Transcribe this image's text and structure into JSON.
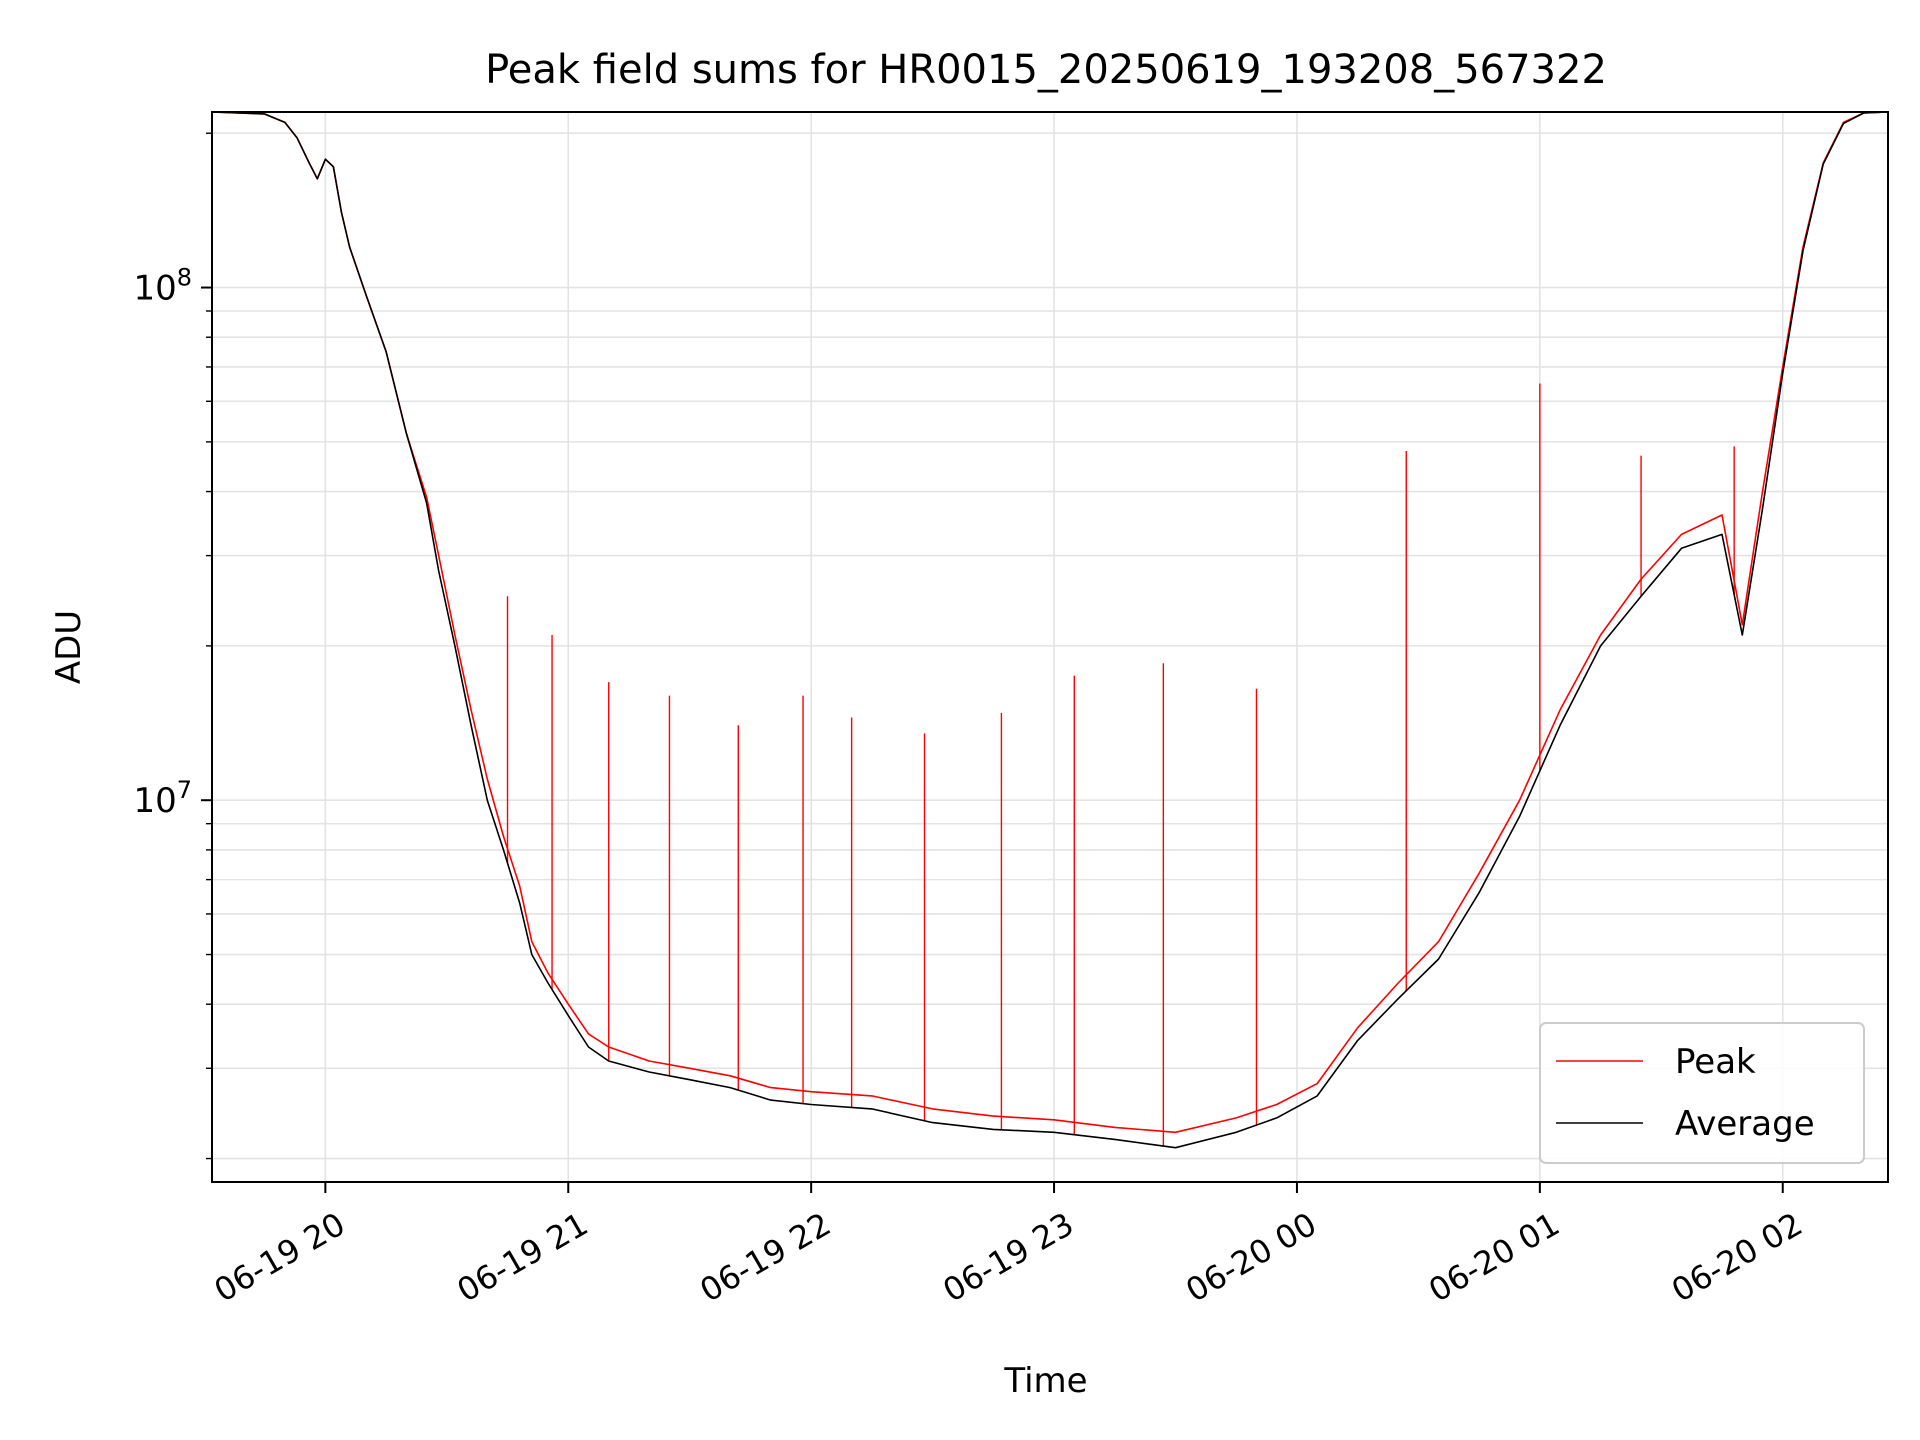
{
  "chart_data": {
    "type": "line",
    "title": "Peak field sums for HR0015_20250619_193208_567322",
    "xlabel": "Time",
    "ylabel": "ADU",
    "x_ticks": [
      {
        "label": "06-19 20",
        "time": "2025-06-19 20:00"
      },
      {
        "label": "06-19 21",
        "time": "2025-06-19 21:00"
      },
      {
        "label": "06-19 22",
        "time": "2025-06-19 22:00"
      },
      {
        "label": "06-19 23",
        "time": "2025-06-19 23:00"
      },
      {
        "label": "06-20 00",
        "time": "2025-06-20 00:00"
      },
      {
        "label": "06-20 01",
        "time": "2025-06-20 01:00"
      },
      {
        "label": "06-20 02",
        "time": "2025-06-20 02:00"
      }
    ],
    "y_ticks": [
      {
        "base": "10",
        "exp": "7",
        "value": 10000000
      },
      {
        "base": "10",
        "exp": "8",
        "value": 100000000
      }
    ],
    "xlim": [
      "2025-06-19 19:32",
      "2025-06-20 02:26"
    ],
    "ylim": [
      1800000,
      220000000
    ],
    "y_scale": "log",
    "grid": true,
    "legend_position": "lower-right",
    "series": [
      {
        "name": "Peak",
        "color": "#ff0000",
        "points": [
          [
            "2025-06-19 19:32",
            220000000
          ],
          [
            "2025-06-19 19:45",
            218000000
          ],
          [
            "2025-06-19 19:50",
            210000000
          ],
          [
            "2025-06-19 19:53",
            196000000
          ],
          [
            "2025-06-19 19:56",
            175000000
          ],
          [
            "2025-06-19 19:58",
            163000000
          ],
          [
            "2025-06-19 20:00",
            178000000
          ],
          [
            "2025-06-19 20:02",
            172000000
          ],
          [
            "2025-06-19 20:04",
            140000000
          ],
          [
            "2025-06-19 20:06",
            120000000
          ],
          [
            "2025-06-19 20:10",
            97000000
          ],
          [
            "2025-06-19 20:15",
            75000000
          ],
          [
            "2025-06-19 20:20",
            52000000
          ],
          [
            "2025-06-19 20:25",
            39000000
          ],
          [
            "2025-06-19 20:28",
            30000000
          ],
          [
            "2025-06-19 20:32",
            21000000
          ],
          [
            "2025-06-19 20:36",
            15000000
          ],
          [
            "2025-06-19 20:40",
            11000000
          ],
          [
            "2025-06-19 20:44",
            8500000
          ],
          [
            "2025-06-19 20:48",
            6800000
          ],
          [
            "2025-06-19 20:51",
            5300000
          ],
          [
            "2025-06-19 20:55",
            4600000
          ],
          [
            "2025-06-19 21:00",
            4000000
          ],
          [
            "2025-06-19 21:05",
            3500000
          ],
          [
            "2025-06-19 21:10",
            3300000
          ],
          [
            "2025-06-19 21:20",
            3100000
          ],
          [
            "2025-06-19 21:30",
            3000000
          ],
          [
            "2025-06-19 21:40",
            2900000
          ],
          [
            "2025-06-19 21:50",
            2750000
          ],
          [
            "2025-06-19 22:00",
            2700000
          ],
          [
            "2025-06-19 22:15",
            2650000
          ],
          [
            "2025-06-19 22:30",
            2500000
          ],
          [
            "2025-06-19 22:45",
            2420000
          ],
          [
            "2025-06-19 23:00",
            2380000
          ],
          [
            "2025-06-19 23:15",
            2300000
          ],
          [
            "2025-06-19 23:30",
            2250000
          ],
          [
            "2025-06-19 23:45",
            2400000
          ],
          [
            "2025-06-19 23:55",
            2550000
          ],
          [
            "2025-06-20 00:05",
            2800000
          ],
          [
            "2025-06-20 00:15",
            3600000
          ],
          [
            "2025-06-20 00:25",
            4400000
          ],
          [
            "2025-06-20 00:35",
            5300000
          ],
          [
            "2025-06-20 00:45",
            7200000
          ],
          [
            "2025-06-20 00:55",
            10000000
          ],
          [
            "2025-06-20 01:05",
            15000000
          ],
          [
            "2025-06-20 01:15",
            21000000
          ],
          [
            "2025-06-20 01:25",
            27000000
          ],
          [
            "2025-06-20 01:35",
            33000000
          ],
          [
            "2025-06-20 01:45",
            36000000
          ],
          [
            "2025-06-20 01:50",
            22000000
          ],
          [
            "2025-06-20 01:55",
            40000000
          ],
          [
            "2025-06-20 02:00",
            70000000
          ],
          [
            "2025-06-20 02:05",
            120000000
          ],
          [
            "2025-06-20 02:10",
            175000000
          ],
          [
            "2025-06-20 02:15",
            210000000
          ],
          [
            "2025-06-20 02:20",
            219000000
          ],
          [
            "2025-06-20 02:26",
            220000000
          ]
        ],
        "spikes": [
          [
            "2025-06-19 20:45",
            25000000
          ],
          [
            "2025-06-19 20:56",
            21000000
          ],
          [
            "2025-06-19 21:10",
            17000000
          ],
          [
            "2025-06-19 21:25",
            16000000
          ],
          [
            "2025-06-19 21:42",
            14000000
          ],
          [
            "2025-06-19 21:58",
            16000000
          ],
          [
            "2025-06-19 22:10",
            14500000
          ],
          [
            "2025-06-19 22:28",
            13500000
          ],
          [
            "2025-06-19 22:47",
            14800000
          ],
          [
            "2025-06-19 23:05",
            17500000
          ],
          [
            "2025-06-19 23:27",
            18500000
          ],
          [
            "2025-06-19 23:50",
            16500000
          ],
          [
            "2025-06-20 00:27",
            48000000
          ],
          [
            "2025-06-20 01:00",
            65000000
          ],
          [
            "2025-06-20 01:25",
            47000000
          ],
          [
            "2025-06-20 01:48",
            49000000
          ]
        ]
      },
      {
        "name": "Average",
        "color": "#000000",
        "points": [
          [
            "2025-06-19 19:32",
            220000000
          ],
          [
            "2025-06-19 19:45",
            218000000
          ],
          [
            "2025-06-19 19:50",
            210000000
          ],
          [
            "2025-06-19 19:53",
            196000000
          ],
          [
            "2025-06-19 19:56",
            175000000
          ],
          [
            "2025-06-19 19:58",
            163000000
          ],
          [
            "2025-06-19 20:00",
            178000000
          ],
          [
            "2025-06-19 20:02",
            172000000
          ],
          [
            "2025-06-19 20:04",
            140000000
          ],
          [
            "2025-06-19 20:06",
            120000000
          ],
          [
            "2025-06-19 20:10",
            97000000
          ],
          [
            "2025-06-19 20:15",
            75000000
          ],
          [
            "2025-06-19 20:20",
            52000000
          ],
          [
            "2025-06-19 20:25",
            38000000
          ],
          [
            "2025-06-19 20:28",
            28000000
          ],
          [
            "2025-06-19 20:32",
            20000000
          ],
          [
            "2025-06-19 20:36",
            14000000
          ],
          [
            "2025-06-19 20:40",
            10000000
          ],
          [
            "2025-06-19 20:44",
            8000000
          ],
          [
            "2025-06-19 20:48",
            6300000
          ],
          [
            "2025-06-19 20:51",
            5000000
          ],
          [
            "2025-06-19 20:55",
            4400000
          ],
          [
            "2025-06-19 21:00",
            3800000
          ],
          [
            "2025-06-19 21:05",
            3300000
          ],
          [
            "2025-06-19 21:10",
            3100000
          ],
          [
            "2025-06-19 21:20",
            2950000
          ],
          [
            "2025-06-19 21:30",
            2850000
          ],
          [
            "2025-06-19 21:40",
            2750000
          ],
          [
            "2025-06-19 21:50",
            2600000
          ],
          [
            "2025-06-19 22:00",
            2550000
          ],
          [
            "2025-06-19 22:15",
            2500000
          ],
          [
            "2025-06-19 22:30",
            2350000
          ],
          [
            "2025-06-19 22:45",
            2280000
          ],
          [
            "2025-06-19 23:00",
            2250000
          ],
          [
            "2025-06-19 23:15",
            2180000
          ],
          [
            "2025-06-19 23:30",
            2100000
          ],
          [
            "2025-06-19 23:45",
            2250000
          ],
          [
            "2025-06-19 23:55",
            2400000
          ],
          [
            "2025-06-20 00:05",
            2650000
          ],
          [
            "2025-06-20 00:15",
            3400000
          ],
          [
            "2025-06-20 00:25",
            4100000
          ],
          [
            "2025-06-20 00:35",
            4900000
          ],
          [
            "2025-06-20 00:45",
            6600000
          ],
          [
            "2025-06-20 00:55",
            9300000
          ],
          [
            "2025-06-20 01:05",
            14000000
          ],
          [
            "2025-06-20 01:15",
            20000000
          ],
          [
            "2025-06-20 01:25",
            25000000
          ],
          [
            "2025-06-20 01:35",
            31000000
          ],
          [
            "2025-06-20 01:45",
            33000000
          ],
          [
            "2025-06-20 01:50",
            21000000
          ],
          [
            "2025-06-20 01:55",
            37000000
          ],
          [
            "2025-06-20 02:00",
            68000000
          ],
          [
            "2025-06-20 02:05",
            118000000
          ],
          [
            "2025-06-20 02:10",
            174000000
          ],
          [
            "2025-06-20 02:15",
            209000000
          ],
          [
            "2025-06-20 02:20",
            219000000
          ],
          [
            "2025-06-20 02:26",
            220000000
          ]
        ]
      }
    ]
  }
}
